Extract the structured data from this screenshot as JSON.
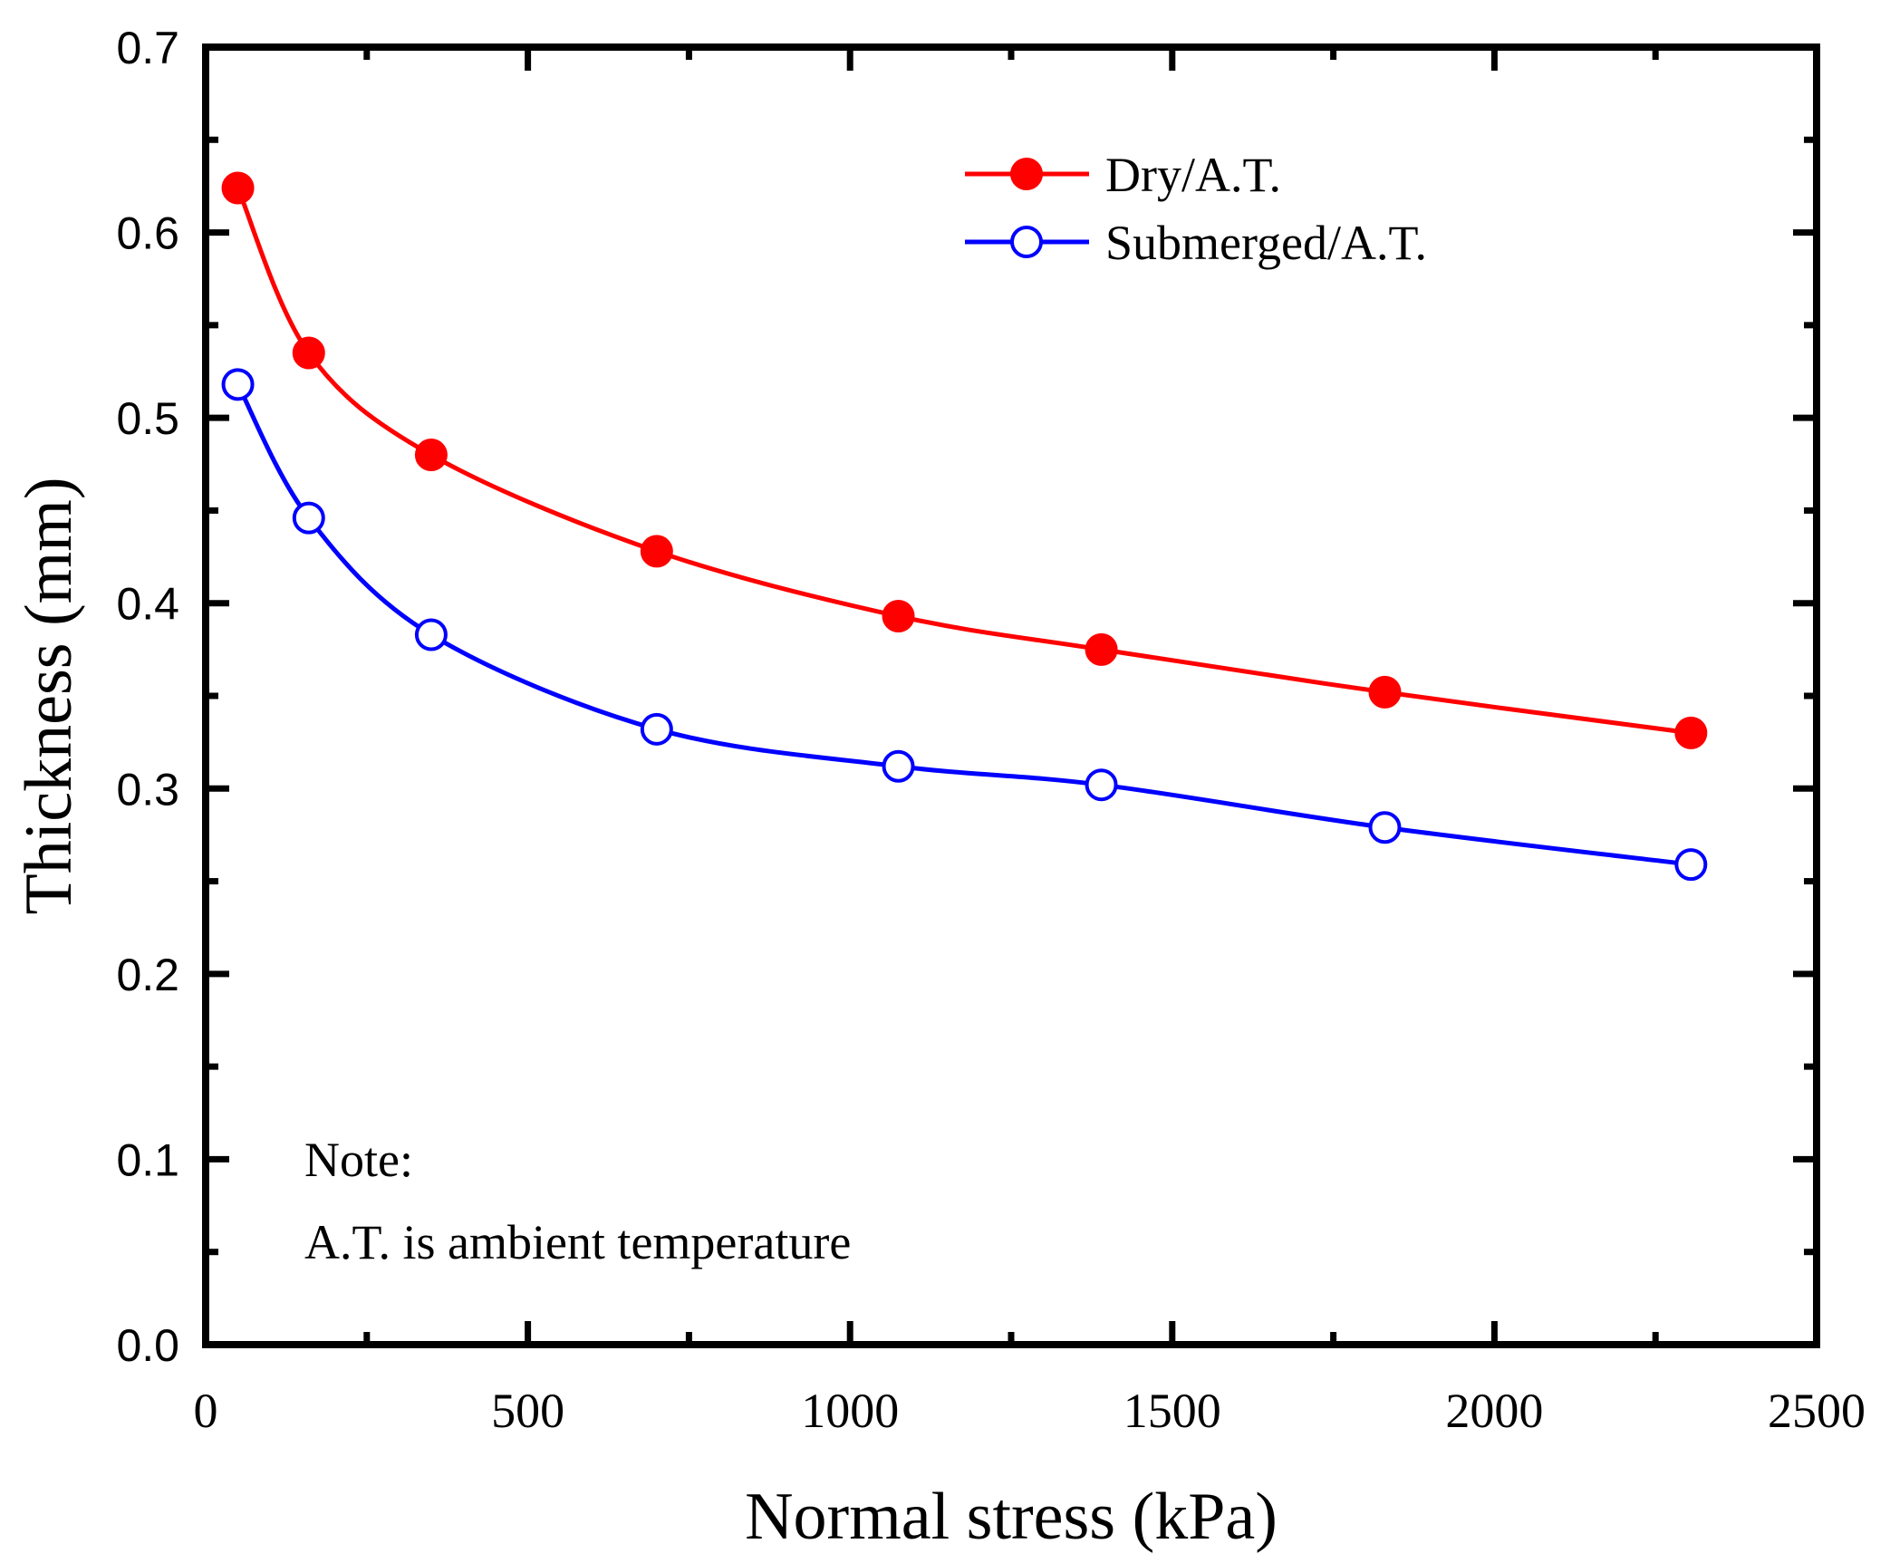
{
  "chart_data": {
    "type": "line",
    "title": "",
    "xlabel": "Normal stress (kPa)",
    "ylabel": "Thickness (mm)",
    "xlim": [
      0,
      2500
    ],
    "ylim": [
      0.0,
      0.7
    ],
    "xticks": [
      0,
      500,
      1000,
      1500,
      2000,
      2500
    ],
    "xtick_labels": [
      "0",
      "500",
      "1000",
      "1500",
      "2000",
      "2500"
    ],
    "yticks": [
      0.0,
      0.1,
      0.2,
      0.3,
      0.4,
      0.5,
      0.6,
      0.7
    ],
    "ytick_labels": [
      "0.0",
      "0.1",
      "0.2",
      "0.3",
      "0.4",
      "0.5",
      "0.6",
      "0.7"
    ],
    "grid": false,
    "legend_position": "top-right",
    "series": [
      {
        "name": "Dry/A.T.",
        "color": "#ff0000",
        "marker": "filled-circle",
        "x": [
          50,
          160,
          350,
          700,
          1075,
          1390,
          1830,
          2305
        ],
        "y": [
          0.624,
          0.535,
          0.48,
          0.428,
          0.393,
          0.375,
          0.352,
          0.33
        ]
      },
      {
        "name": "Submerged/A.T.",
        "color": "#0000ff",
        "marker": "open-circle",
        "x": [
          50,
          160,
          350,
          700,
          1075,
          1390,
          1830,
          2305
        ],
        "y": [
          0.518,
          0.446,
          0.383,
          0.332,
          0.312,
          0.302,
          0.279,
          0.259
        ]
      }
    ],
    "annotations": [
      "Note:",
      "A.T. is ambient temperature"
    ]
  }
}
